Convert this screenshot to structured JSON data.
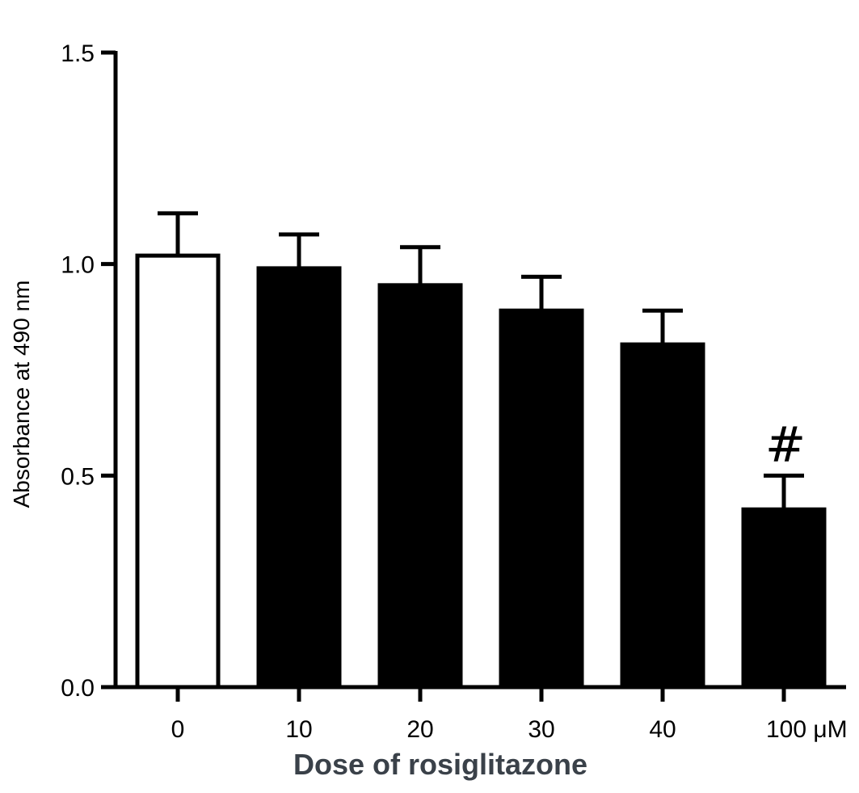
{
  "chart_data": {
    "type": "bar",
    "categories": [
      "0",
      "10",
      "20",
      "30",
      "40",
      "100 μM"
    ],
    "values": [
      1.02,
      0.99,
      0.95,
      0.89,
      0.81,
      0.42
    ],
    "errors": [
      0.1,
      0.08,
      0.09,
      0.08,
      0.08,
      0.08
    ],
    "bar_fills": [
      "#ffffff",
      "#000000",
      "#000000",
      "#000000",
      "#000000",
      "#000000"
    ],
    "annotations": [
      {
        "category": "100 μM",
        "text": "#"
      }
    ],
    "xlabel": "Dose of rosiglitazone",
    "ylabel": "Absorbance at 490 nm",
    "ylim": [
      0,
      1.5
    ],
    "yticks": [
      0.0,
      0.5,
      1.0,
      1.5
    ],
    "ytick_labels": [
      "0.0",
      "0.5",
      "1.0",
      "1.5"
    ],
    "grid": false,
    "legend": "none"
  }
}
